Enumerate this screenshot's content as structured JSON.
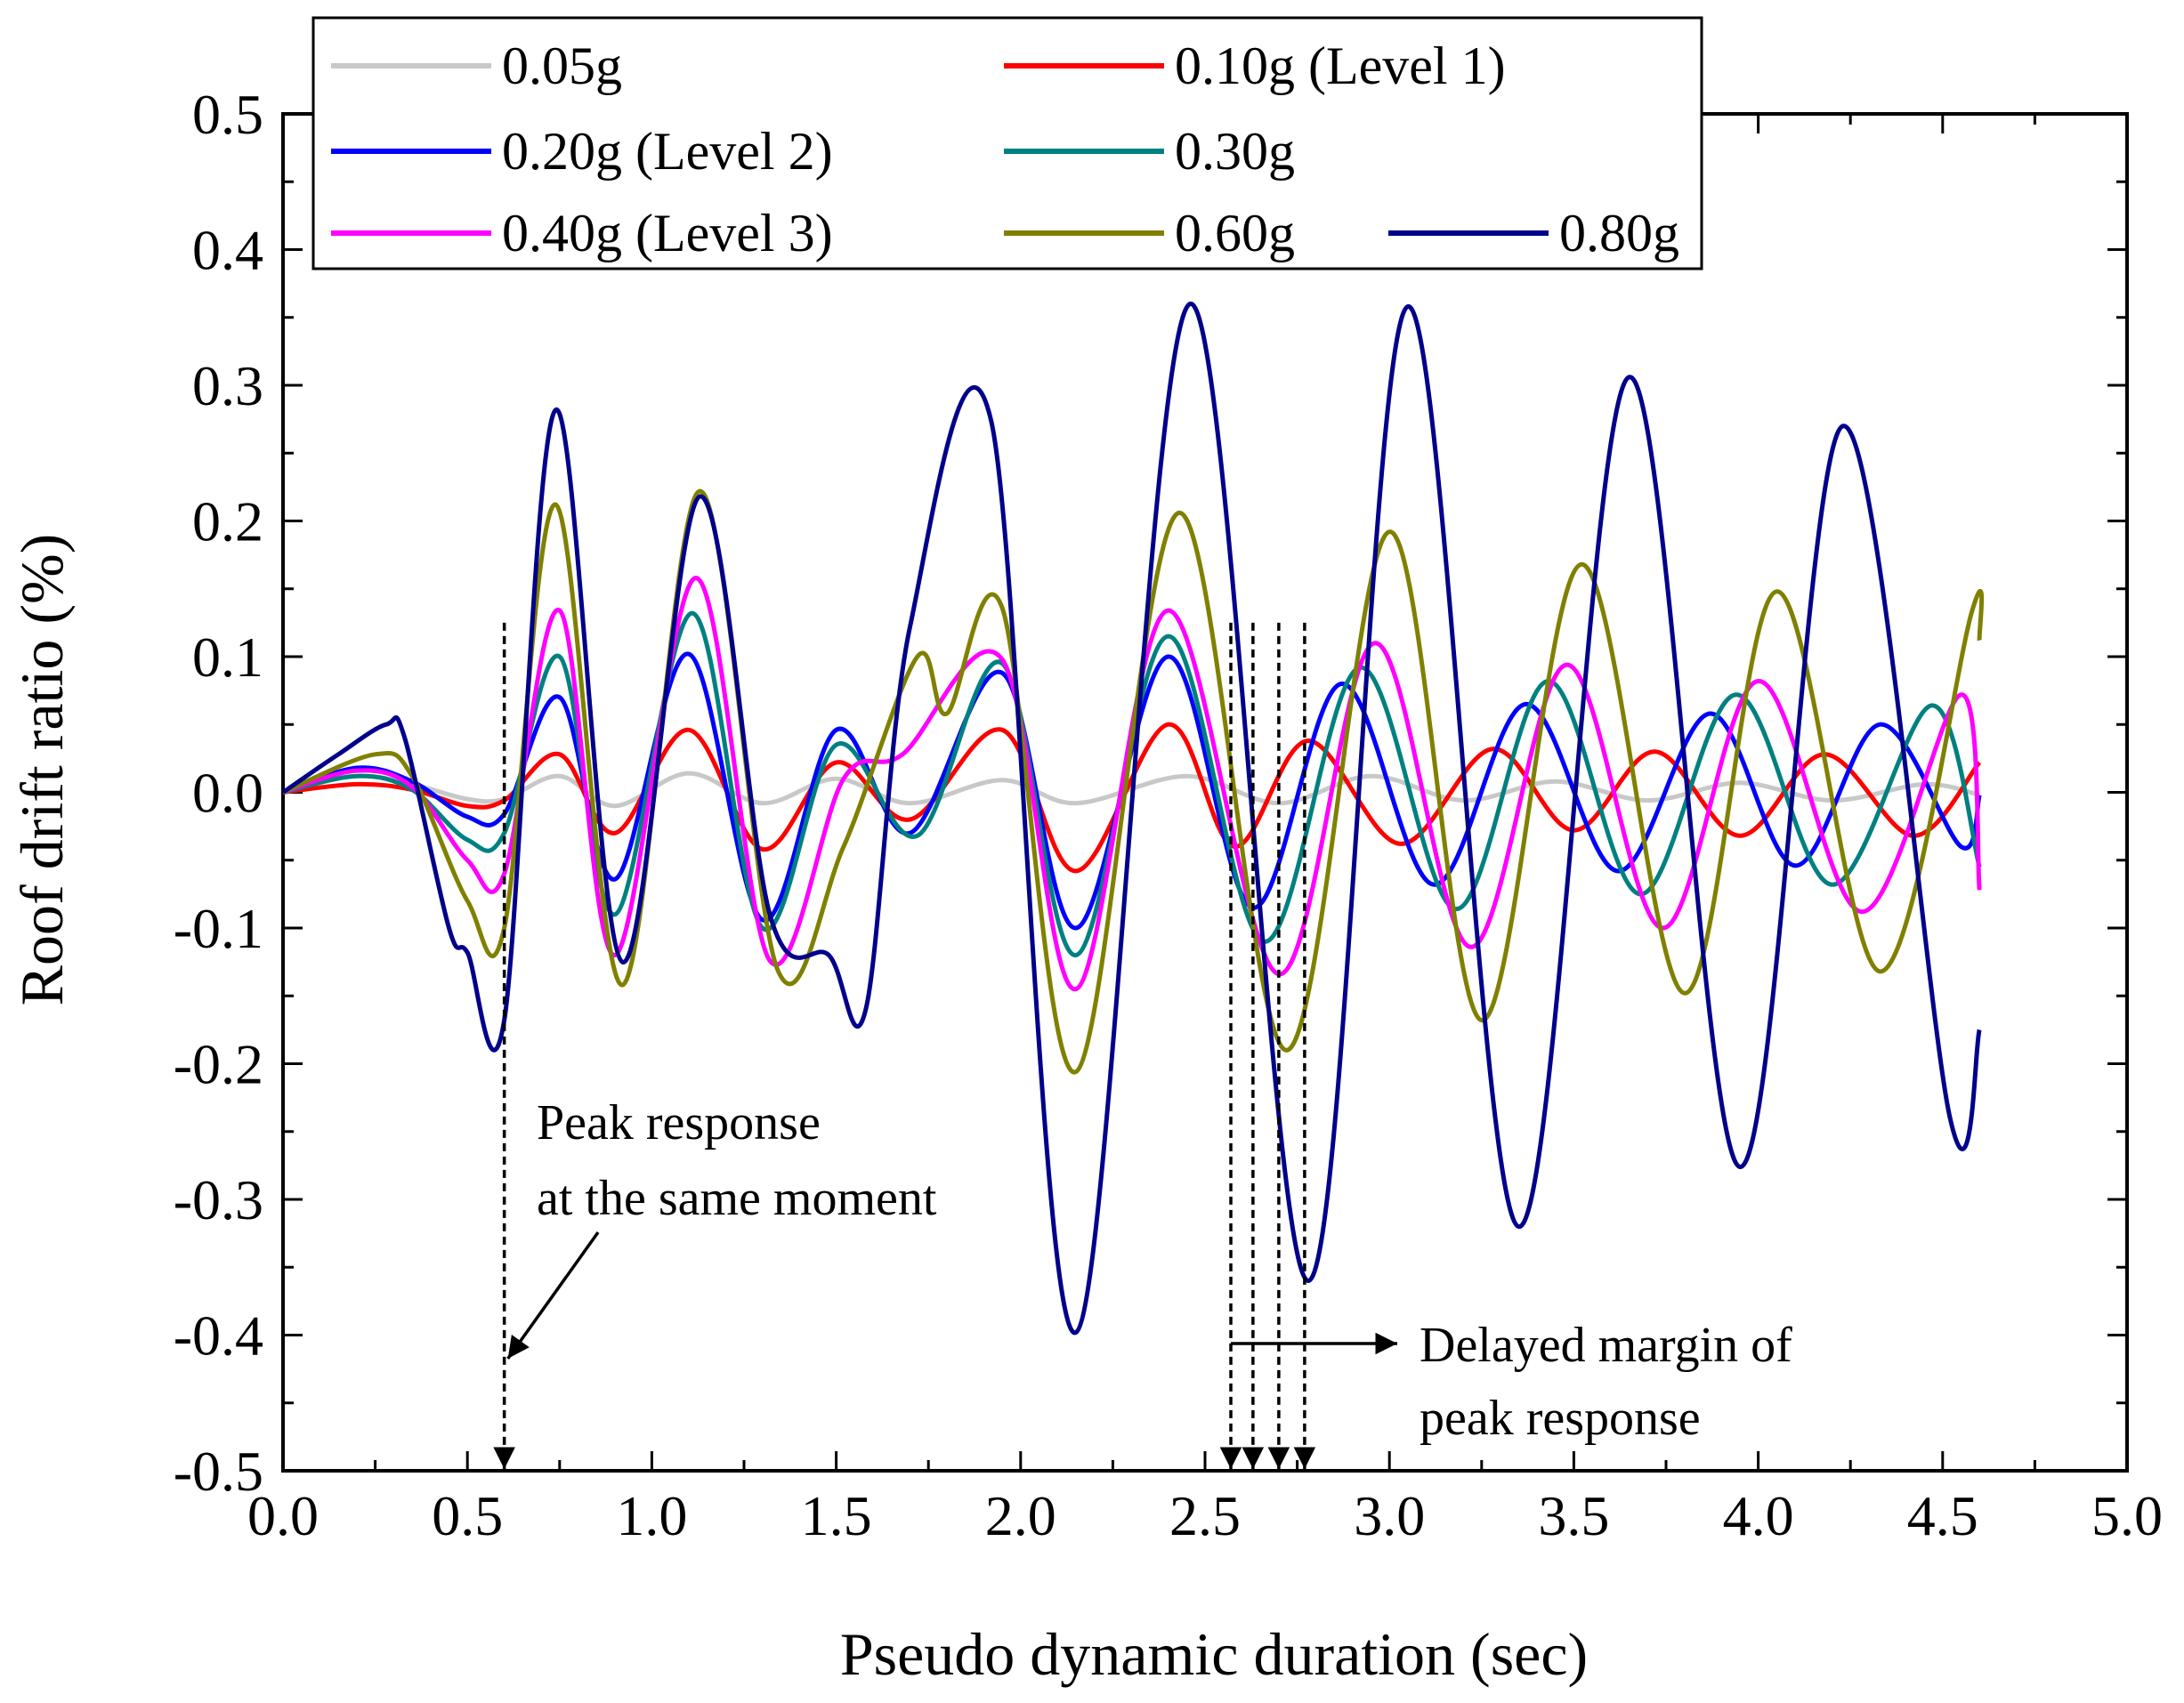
{
  "chart_data": {
    "type": "line",
    "title": "",
    "xlabel": "Pseudo dynamic duration (sec)",
    "ylabel": "Roof drift ratio (%)",
    "xlim": [
      0,
      5
    ],
    "ylim": [
      -0.5,
      0.5
    ],
    "xticks": [
      "0.0",
      "0.5",
      "1.0",
      "1.5",
      "2.0",
      "2.5",
      "3.0",
      "3.5",
      "4.0",
      "4.5",
      "5.0"
    ],
    "yticks": [
      "0.5",
      "0.4",
      "0.3",
      "0.2",
      "0.1",
      "0.0",
      "-0.1",
      "-0.2",
      "-0.3",
      "-0.4",
      "-0.5"
    ],
    "grid": false,
    "legend_position": "top",
    "series": [
      {
        "name": "0.05g",
        "color": "#c8c8c8",
        "points": [
          [
            0,
            0
          ],
          [
            0.2,
            0.012
          ],
          [
            0.35,
            0.006
          ],
          [
            0.5,
            -0.005
          ],
          [
            0.6,
            -0.005
          ],
          [
            0.75,
            0.012
          ],
          [
            0.9,
            -0.01
          ],
          [
            1.1,
            0.014
          ],
          [
            1.3,
            -0.008
          ],
          [
            1.5,
            0.01
          ],
          [
            1.7,
            -0.008
          ],
          [
            1.95,
            0.009
          ],
          [
            2.15,
            -0.008
          ],
          [
            2.45,
            0.012
          ],
          [
            2.7,
            -0.008
          ],
          [
            2.95,
            0.012
          ],
          [
            3.2,
            -0.006
          ],
          [
            3.45,
            0.008
          ],
          [
            3.7,
            -0.006
          ],
          [
            3.95,
            0.007
          ],
          [
            4.2,
            -0.006
          ],
          [
            4.45,
            0.006
          ],
          [
            4.6,
            -0.002
          ]
        ]
      },
      {
        "name": "0.10g (Level 1)",
        "color": "#ff0000",
        "points": [
          [
            0,
            0
          ],
          [
            0.2,
            0.006
          ],
          [
            0.35,
            0.002
          ],
          [
            0.5,
            -0.01
          ],
          [
            0.6,
            -0.006
          ],
          [
            0.75,
            0.028
          ],
          [
            0.9,
            -0.03
          ],
          [
            1.1,
            0.046
          ],
          [
            1.3,
            -0.042
          ],
          [
            1.5,
            0.022
          ],
          [
            1.7,
            -0.02
          ],
          [
            1.95,
            0.046
          ],
          [
            2.15,
            -0.058
          ],
          [
            2.4,
            0.05
          ],
          [
            2.58,
            -0.04
          ],
          [
            2.78,
            0.038
          ],
          [
            3.03,
            -0.038
          ],
          [
            3.28,
            0.032
          ],
          [
            3.5,
            -0.028
          ],
          [
            3.72,
            0.03
          ],
          [
            3.95,
            -0.032
          ],
          [
            4.18,
            0.028
          ],
          [
            4.42,
            -0.032
          ],
          [
            4.6,
            0.022
          ]
        ]
      },
      {
        "name": "0.20g (Level 2)",
        "color": "#0000ff",
        "points": [
          [
            0,
            0
          ],
          [
            0.2,
            0.018
          ],
          [
            0.35,
            0.008
          ],
          [
            0.5,
            -0.018
          ],
          [
            0.6,
            -0.016
          ],
          [
            0.75,
            0.07
          ],
          [
            0.9,
            -0.064
          ],
          [
            1.1,
            0.102
          ],
          [
            1.3,
            -0.094
          ],
          [
            1.5,
            0.046
          ],
          [
            1.7,
            -0.03
          ],
          [
            1.95,
            0.088
          ],
          [
            2.15,
            -0.1
          ],
          [
            2.4,
            0.1
          ],
          [
            2.63,
            -0.085
          ],
          [
            2.87,
            0.08
          ],
          [
            3.12,
            -0.068
          ],
          [
            3.37,
            0.065
          ],
          [
            3.62,
            -0.058
          ],
          [
            3.87,
            0.058
          ],
          [
            4.1,
            -0.054
          ],
          [
            4.33,
            0.05
          ],
          [
            4.55,
            -0.04
          ],
          [
            4.6,
            -0.002
          ]
        ]
      },
      {
        "name": "0.30g",
        "color": "#008080",
        "points": [
          [
            0,
            0
          ],
          [
            0.2,
            0.012
          ],
          [
            0.35,
            0.002
          ],
          [
            0.5,
            -0.035
          ],
          [
            0.6,
            -0.03
          ],
          [
            0.75,
            0.1
          ],
          [
            0.9,
            -0.09
          ],
          [
            1.11,
            0.132
          ],
          [
            1.3,
            -0.1
          ],
          [
            1.5,
            0.035
          ],
          [
            1.72,
            -0.032
          ],
          [
            1.95,
            0.095
          ],
          [
            2.15,
            -0.12
          ],
          [
            2.4,
            0.115
          ],
          [
            2.66,
            -0.11
          ],
          [
            2.92,
            0.092
          ],
          [
            3.18,
            -0.086
          ],
          [
            3.43,
            0.082
          ],
          [
            3.68,
            -0.075
          ],
          [
            3.94,
            0.072
          ],
          [
            4.2,
            -0.068
          ],
          [
            4.47,
            0.064
          ],
          [
            4.6,
            -0.055
          ]
        ]
      },
      {
        "name": "0.40g (Level 3)",
        "color": "#ff00ff",
        "points": [
          [
            0,
            0
          ],
          [
            0.2,
            0.016
          ],
          [
            0.35,
            0.004
          ],
          [
            0.5,
            -0.05
          ],
          [
            0.6,
            -0.06
          ],
          [
            0.75,
            0.134
          ],
          [
            0.9,
            -0.12
          ],
          [
            1.12,
            0.158
          ],
          [
            1.32,
            -0.124
          ],
          [
            1.52,
            0.01
          ],
          [
            1.68,
            0.028
          ],
          [
            1.95,
            0.098
          ],
          [
            2.15,
            -0.145
          ],
          [
            2.4,
            0.134
          ],
          [
            2.7,
            -0.134
          ],
          [
            2.96,
            0.11
          ],
          [
            3.22,
            -0.114
          ],
          [
            3.48,
            0.094
          ],
          [
            3.74,
            -0.1
          ],
          [
            4.0,
            0.082
          ],
          [
            4.28,
            -0.088
          ],
          [
            4.55,
            0.072
          ],
          [
            4.6,
            -0.072
          ]
        ]
      },
      {
        "name": "0.60g",
        "color": "#808000",
        "points": [
          [
            0,
            0
          ],
          [
            0.25,
            0.028
          ],
          [
            0.35,
            0.012
          ],
          [
            0.5,
            -0.08
          ],
          [
            0.6,
            -0.1
          ],
          [
            0.74,
            0.212
          ],
          [
            0.92,
            -0.142
          ],
          [
            1.13,
            0.222
          ],
          [
            1.34,
            -0.13
          ],
          [
            1.52,
            -0.04
          ],
          [
            1.72,
            0.1
          ],
          [
            1.8,
            0.058
          ],
          [
            1.95,
            0.136
          ],
          [
            2.15,
            -0.206
          ],
          [
            2.43,
            0.206
          ],
          [
            2.72,
            -0.19
          ],
          [
            3.0,
            0.192
          ],
          [
            3.25,
            -0.168
          ],
          [
            3.52,
            0.168
          ],
          [
            3.8,
            -0.148
          ],
          [
            4.05,
            0.148
          ],
          [
            4.33,
            -0.132
          ],
          [
            4.58,
            0.134
          ],
          [
            4.6,
            0.112
          ]
        ]
      },
      {
        "name": "0.80g",
        "color": "#00008b",
        "points": [
          [
            0,
            0
          ],
          [
            0.15,
            0.028
          ],
          [
            0.28,
            0.05
          ],
          [
            0.33,
            0.04
          ],
          [
            0.45,
            -0.1
          ],
          [
            0.5,
            -0.118
          ],
          [
            0.6,
            -0.168
          ],
          [
            0.74,
            0.282
          ],
          [
            0.92,
            -0.125
          ],
          [
            1.13,
            0.218
          ],
          [
            1.32,
            -0.09
          ],
          [
            1.48,
            -0.12
          ],
          [
            1.58,
            -0.16
          ],
          [
            1.7,
            0.122
          ],
          [
            1.92,
            0.274
          ],
          [
            2.15,
            -0.398
          ],
          [
            2.46,
            0.36
          ],
          [
            2.78,
            -0.36
          ],
          [
            3.05,
            0.358
          ],
          [
            3.35,
            -0.32
          ],
          [
            3.65,
            0.306
          ],
          [
            3.95,
            -0.276
          ],
          [
            4.23,
            0.27
          ],
          [
            4.52,
            -0.24
          ],
          [
            4.6,
            -0.175
          ]
        ]
      }
    ],
    "annotations": [
      {
        "text_lines": [
          "Peak response",
          "at the same moment"
        ],
        "x": 0.6
      },
      {
        "text_lines": [
          "Delayed margin of",
          "peak response"
        ],
        "x": [
          2.57,
          2.63,
          2.7,
          2.77
        ]
      }
    ]
  }
}
